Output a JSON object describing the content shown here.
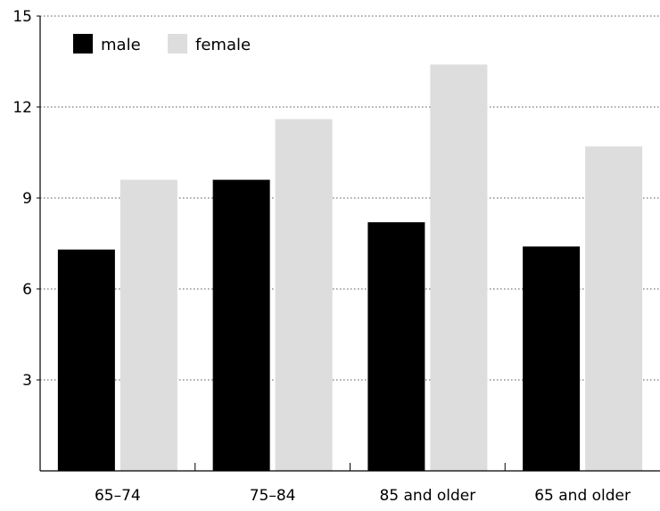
{
  "chart_data": {
    "type": "bar",
    "categories": [
      "65–74",
      "75–84",
      "85 and older",
      "65 and older"
    ],
    "series": [
      {
        "name": "male",
        "values": [
          7.3,
          9.6,
          8.2,
          7.4
        ],
        "color": "#000000"
      },
      {
        "name": "female",
        "values": [
          9.6,
          11.6,
          13.4,
          10.7
        ],
        "color": "#dddddd"
      }
    ],
    "ylim": [
      0,
      15
    ],
    "yticks": [
      "3",
      "6",
      "9",
      "12",
      "15"
    ],
    "ytick_values": [
      3,
      6,
      9,
      12,
      15
    ],
    "grid": true,
    "grid_style": "dotted",
    "legend_position": "top-left",
    "title": "",
    "xlabel": "",
    "ylabel": ""
  }
}
